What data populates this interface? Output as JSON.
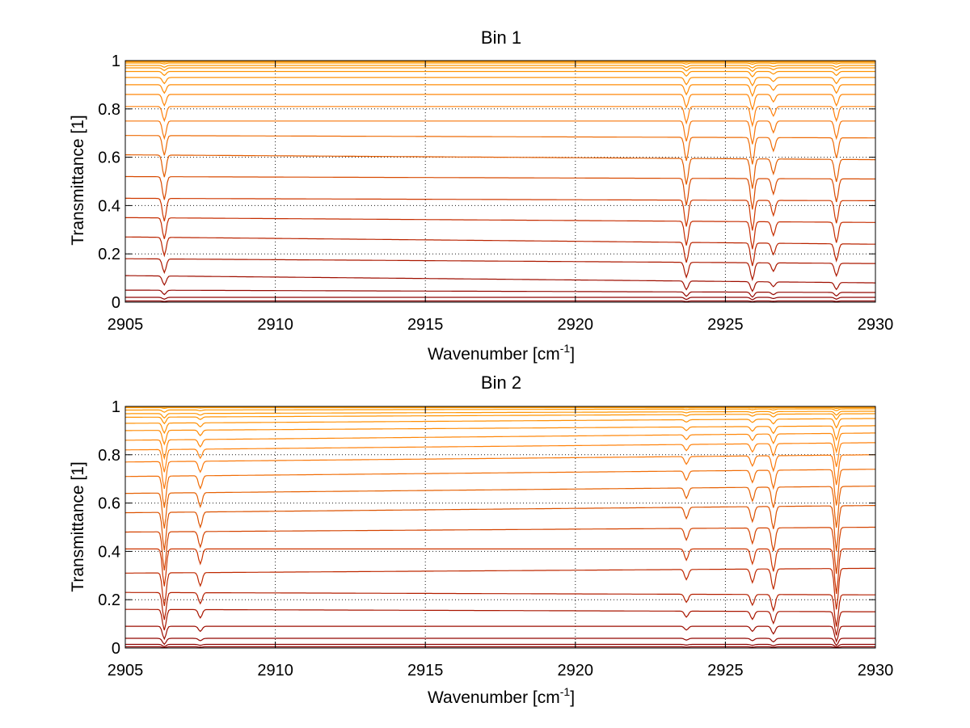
{
  "chart_data": [
    {
      "type": "line",
      "title": "Bin 1",
      "xlabel": "Wavenumber [cm",
      "xlabel_sup": "-1",
      "xlabel_close": "]",
      "ylabel": "Transmittance [1]",
      "xlim": [
        2905,
        2930
      ],
      "ylim": [
        0,
        1
      ],
      "xticks": [
        "2905",
        "2910",
        "2915",
        "2920",
        "2925",
        "2930"
      ],
      "yticks": [
        "0",
        "0.2",
        "0.4",
        "0.6",
        "0.8",
        "1"
      ],
      "grid": true,
      "color_map": [
        "#8b0000",
        "#b01c00",
        "#cc3300",
        "#e05a00",
        "#ff7f0e",
        "#ff9900"
      ],
      "absorption_lines": [
        {
          "x": 2906.3,
          "relative_depth": 0.06
        },
        {
          "x": 2923.7,
          "relative_depth": 0.07
        },
        {
          "x": 2925.9,
          "relative_depth": 0.08
        },
        {
          "x": 2926.6,
          "relative_depth": 0.04
        },
        {
          "x": 2928.7,
          "relative_depth": 0.06
        }
      ],
      "series_baselines": [
        {
          "start": 0.005,
          "end": 0.005
        },
        {
          "start": 0.02,
          "end": 0.02
        },
        {
          "start": 0.05,
          "end": 0.04
        },
        {
          "start": 0.11,
          "end": 0.08
        },
        {
          "start": 0.18,
          "end": 0.16
        },
        {
          "start": 0.27,
          "end": 0.24
        },
        {
          "start": 0.35,
          "end": 0.33
        },
        {
          "start": 0.43,
          "end": 0.42
        },
        {
          "start": 0.52,
          "end": 0.51
        },
        {
          "start": 0.61,
          "end": 0.59
        },
        {
          "start": 0.69,
          "end": 0.68
        },
        {
          "start": 0.75,
          "end": 0.75
        },
        {
          "start": 0.81,
          "end": 0.81
        },
        {
          "start": 0.86,
          "end": 0.86
        },
        {
          "start": 0.9,
          "end": 0.9
        },
        {
          "start": 0.93,
          "end": 0.93
        },
        {
          "start": 0.955,
          "end": 0.955
        },
        {
          "start": 0.97,
          "end": 0.97
        },
        {
          "start": 0.98,
          "end": 0.98
        },
        {
          "start": 0.99,
          "end": 0.99
        },
        {
          "start": 0.995,
          "end": 0.995
        },
        {
          "start": 0.998,
          "end": 0.998
        }
      ]
    },
    {
      "type": "line",
      "title": "Bin 2",
      "xlabel": "Wavenumber [cm",
      "xlabel_sup": "-1",
      "xlabel_close": "]",
      "ylabel": "Transmittance [1]",
      "xlim": [
        2905,
        2930
      ],
      "ylim": [
        0,
        1
      ],
      "xticks": [
        "2905",
        "2910",
        "2915",
        "2920",
        "2925",
        "2930"
      ],
      "yticks": [
        "0",
        "0.2",
        "0.4",
        "0.6",
        "0.8",
        "1"
      ],
      "grid": true,
      "color_map": [
        "#8b0000",
        "#b01c00",
        "#cc3300",
        "#e05a00",
        "#ff7f0e",
        "#ff9900"
      ],
      "absorption_lines": [
        {
          "x": 2906.3,
          "relative_depth": 0.1
        },
        {
          "x": 2907.5,
          "relative_depth": 0.04
        },
        {
          "x": 2923.7,
          "relative_depth": 0.03
        },
        {
          "x": 2925.9,
          "relative_depth": 0.04
        },
        {
          "x": 2926.6,
          "relative_depth": 0.06
        },
        {
          "x": 2928.7,
          "relative_depth": 0.12
        }
      ],
      "series_baselines": [
        {
          "start": 0.005,
          "end": 0.005
        },
        {
          "start": 0.015,
          "end": 0.015
        },
        {
          "start": 0.04,
          "end": 0.04
        },
        {
          "start": 0.09,
          "end": 0.09
        },
        {
          "start": 0.16,
          "end": 0.15
        },
        {
          "start": 0.23,
          "end": 0.22
        },
        {
          "start": 0.31,
          "end": 0.33
        },
        {
          "start": 0.41,
          "end": 0.41
        },
        {
          "start": 0.48,
          "end": 0.5
        },
        {
          "start": 0.56,
          "end": 0.59
        },
        {
          "start": 0.64,
          "end": 0.67
        },
        {
          "start": 0.71,
          "end": 0.74
        },
        {
          "start": 0.77,
          "end": 0.8
        },
        {
          "start": 0.82,
          "end": 0.85
        },
        {
          "start": 0.86,
          "end": 0.89
        },
        {
          "start": 0.9,
          "end": 0.92
        },
        {
          "start": 0.93,
          "end": 0.95
        },
        {
          "start": 0.955,
          "end": 0.97
        },
        {
          "start": 0.97,
          "end": 0.98
        },
        {
          "start": 0.985,
          "end": 0.99
        },
        {
          "start": 0.995,
          "end": 0.995
        },
        {
          "start": 0.998,
          "end": 0.998
        }
      ]
    }
  ]
}
